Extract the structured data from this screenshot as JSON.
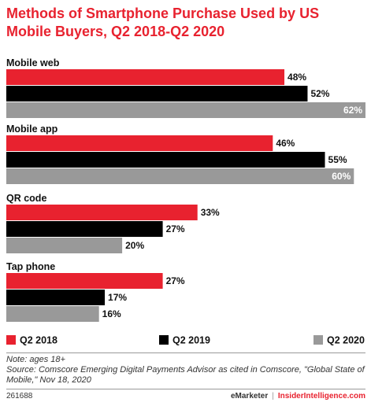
{
  "chart_data": {
    "type": "bar",
    "orientation": "horizontal",
    "title": "Methods of Smartphone Purchase Used by US Mobile Buyers, Q2 2018-Q2 2020",
    "categories": [
      "Mobile web",
      "Mobile app",
      "QR code",
      "Tap phone"
    ],
    "series": [
      {
        "name": "Q2 2018",
        "color": "#e8222f",
        "values": [
          48,
          46,
          33,
          27
        ]
      },
      {
        "name": "Q2 2019",
        "color": "#000000",
        "values": [
          52,
          55,
          27,
          17
        ]
      },
      {
        "name": "Q2 2020",
        "color": "#999999",
        "values": [
          62,
          60,
          20,
          16
        ]
      }
    ],
    "value_suffix": "%",
    "xlim": [
      0,
      62
    ],
    "legend_position": "bottom"
  },
  "note": "Note: ages 18+",
  "source": "Source: Comscore Emerging Digital Payments Advisor as cited in Comscore, \"Global State of Mobile,\" Nov 18, 2020",
  "footer": {
    "id": "261688",
    "brand_left": "eMarketer",
    "brand_sep": "|",
    "brand_right": "InsiderIntelligence.com"
  }
}
